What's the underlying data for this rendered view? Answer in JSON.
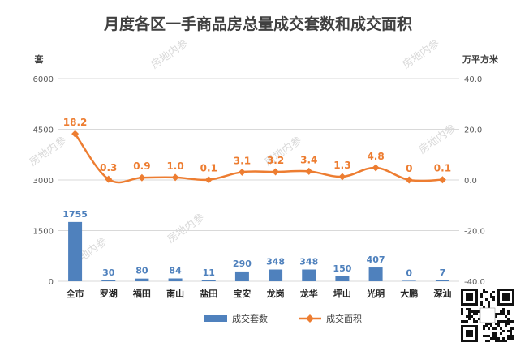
{
  "chart_data": {
    "type": "bar+line",
    "title": "月度各区一手商品房总量成交套数和成交面积",
    "y_left_unit": "套",
    "y_right_unit": "万平方米",
    "categories": [
      "全市",
      "罗湖",
      "福田",
      "南山",
      "盐田",
      "宝安",
      "龙岗",
      "龙华",
      "坪山",
      "光明",
      "大鹏",
      "深汕"
    ],
    "series": [
      {
        "name": "成交套数",
        "type": "bar",
        "axis": "left",
        "values": [
          1755,
          30,
          80,
          84,
          11,
          290,
          348,
          348,
          150,
          407,
          0,
          7
        ],
        "labels": [
          "1755",
          "30",
          "80",
          "84",
          "11",
          "290",
          "348",
          "348",
          "150",
          "407",
          "0",
          "7"
        ]
      },
      {
        "name": "成交面积",
        "type": "line",
        "axis": "right",
        "values": [
          18.2,
          0.3,
          0.9,
          1.0,
          0.1,
          3.1,
          3.2,
          3.4,
          1.3,
          4.8,
          0,
          0.1
        ],
        "labels": [
          "18.2",
          "0.3",
          "0.9",
          "1.0",
          "0.1",
          "3.1",
          "3.2",
          "3.4",
          "1.3",
          "4.8",
          "0",
          "0.1"
        ]
      }
    ],
    "y_left": {
      "min": 0,
      "max": 6000,
      "ticks": [
        0,
        1500,
        3000,
        4500,
        6000
      ],
      "tick_labels": [
        "0",
        "1500",
        "3000",
        "4500",
        "6000"
      ]
    },
    "y_right": {
      "min": -40,
      "max": 40,
      "ticks": [
        -40,
        -20,
        0,
        20,
        40
      ],
      "tick_labels": [
        "-40.0",
        "-20.0",
        "0.0",
        "20.0",
        "40.0"
      ]
    },
    "grid": true,
    "legend_position": "bottom",
    "colors": {
      "bar": "#4f81bd",
      "line": "#ed7d31",
      "grid": "#d9d9d9"
    }
  },
  "watermark": "房地内参"
}
